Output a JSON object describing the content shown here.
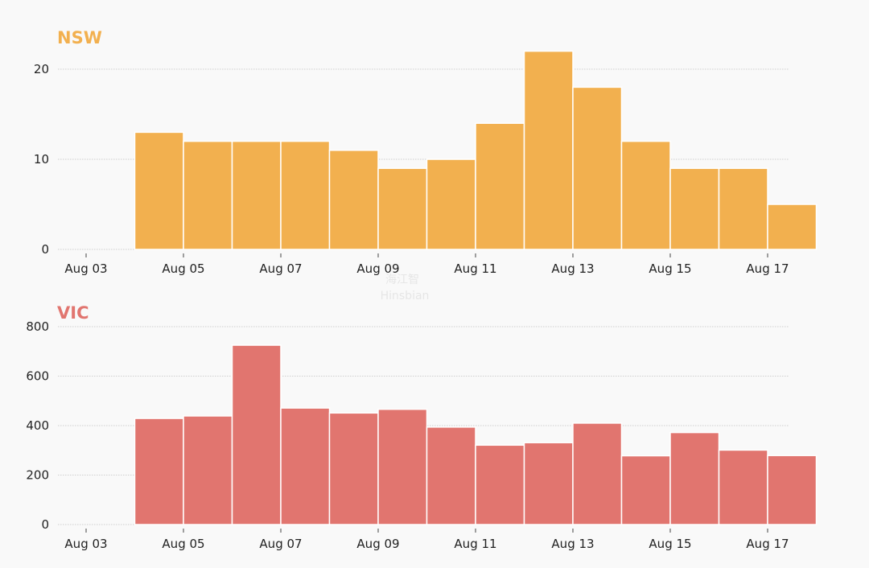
{
  "colors": {
    "background": "#f9f9f9",
    "nsw": "#f2b04f",
    "vic": "#e1756f",
    "grid": "#cfcfcf",
    "text": "#222222"
  },
  "watermark": {
    "line1": "海江智",
    "line2": "Hinsbian"
  },
  "chart_data": [
    {
      "type": "bar",
      "title": "NSW",
      "color": "#f2b04f",
      "xlabel": "",
      "ylabel": "",
      "categories": [
        "Aug 03",
        "Aug 04",
        "Aug 05",
        "Aug 06",
        "Aug 07",
        "Aug 08",
        "Aug 09",
        "Aug 10",
        "Aug 11",
        "Aug 12",
        "Aug 13",
        "Aug 14",
        "Aug 15",
        "Aug 16",
        "Aug 17"
      ],
      "values": [
        null,
        13,
        12,
        12,
        12,
        11,
        9,
        10,
        14,
        22,
        18,
        12,
        9,
        9,
        5
      ],
      "x_ticks": [
        "Aug 03",
        "Aug 05",
        "Aug 07",
        "Aug 09",
        "Aug 11",
        "Aug 13",
        "Aug 15",
        "Aug 17"
      ],
      "y_ticks": [
        0,
        10,
        20
      ],
      "ylim": [
        0,
        22
      ],
      "grid": true
    },
    {
      "type": "bar",
      "title": "VIC",
      "color": "#e1756f",
      "xlabel": "",
      "ylabel": "",
      "categories": [
        "Aug 03",
        "Aug 04",
        "Aug 05",
        "Aug 06",
        "Aug 07",
        "Aug 08",
        "Aug 09",
        "Aug 10",
        "Aug 11",
        "Aug 12",
        "Aug 13",
        "Aug 14",
        "Aug 15",
        "Aug 16",
        "Aug 17"
      ],
      "values": [
        null,
        429,
        439,
        725,
        471,
        451,
        466,
        394,
        321,
        331,
        410,
        278,
        372,
        301,
        279
      ],
      "x_ticks": [
        "Aug 03",
        "Aug 05",
        "Aug 07",
        "Aug 09",
        "Aug 11",
        "Aug 13",
        "Aug 15",
        "Aug 17"
      ],
      "y_ticks": [
        0,
        200,
        400,
        600,
        800
      ],
      "ylim": [
        0,
        800
      ],
      "grid": true
    }
  ]
}
